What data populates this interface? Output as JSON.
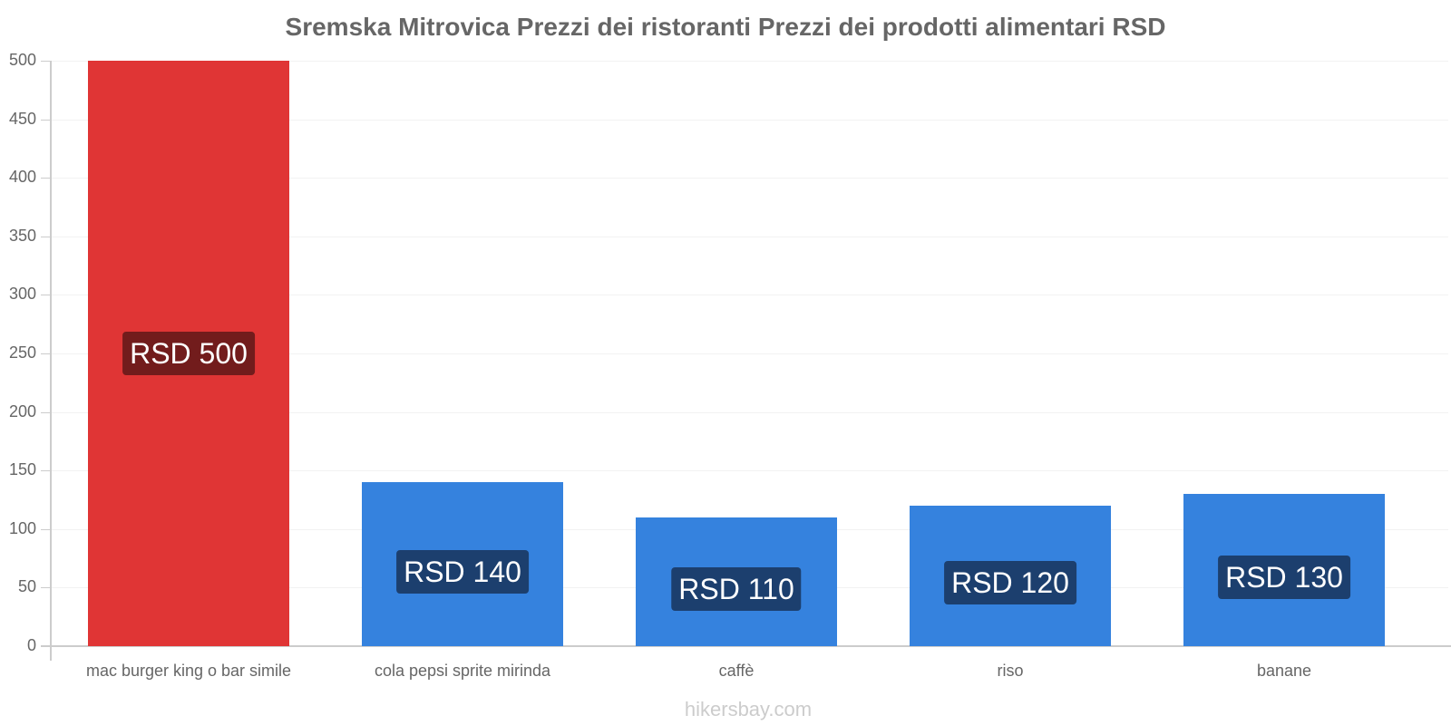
{
  "chart_data": {
    "type": "bar",
    "title": "Sremska Mitrovica Prezzi dei ristoranti Prezzi dei prodotti alimentari RSD",
    "categories": [
      "mac burger king o bar simile",
      "cola pepsi sprite mirinda",
      "caffè",
      "riso",
      "banane"
    ],
    "values": [
      500,
      140,
      110,
      120,
      130
    ],
    "value_labels": [
      "RSD 500",
      "RSD 140",
      "RSD 110",
      "RSD 120",
      "RSD 130"
    ],
    "bar_colors": [
      "#e03535",
      "#3582de",
      "#3582de",
      "#3582de",
      "#3582de"
    ],
    "label_bg_colors": [
      "#721c1c",
      "#1c3f6e",
      "#1c3f6e",
      "#1c3f6e",
      "#1c3f6e"
    ],
    "xlabel": "",
    "ylabel": "",
    "ylim": [
      0,
      500
    ],
    "yticks": [
      0,
      50,
      100,
      150,
      200,
      250,
      300,
      350,
      400,
      450,
      500
    ],
    "grid": true,
    "legend": null
  },
  "watermark": "hikersbay.com"
}
